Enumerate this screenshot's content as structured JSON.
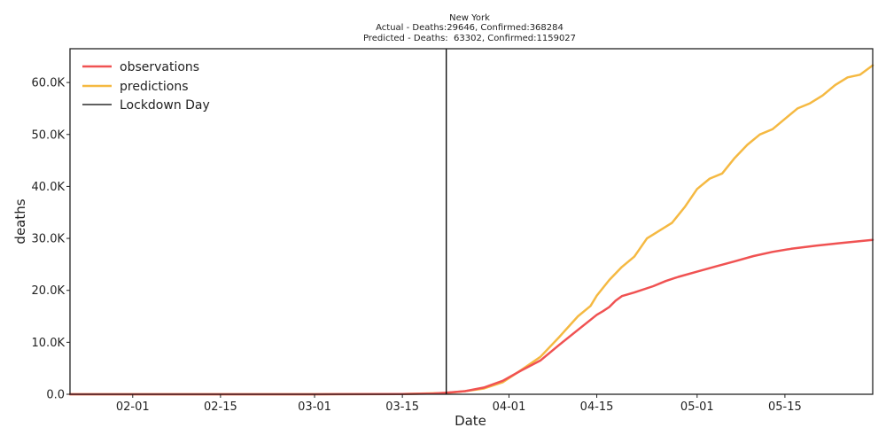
{
  "chart_data": {
    "type": "line",
    "title": "New York",
    "subtitle_lines": [
      "Actual - Deaths:29646, Confirmed:368284",
      "Predicted - Deaths:  63302, Confirmed:1159027"
    ],
    "xlabel": "Date",
    "ylabel": "deaths",
    "x_ticks": [
      "02-01",
      "02-15",
      "03-01",
      "03-15",
      "04-01",
      "04-15",
      "05-01",
      "05-15"
    ],
    "x_tick_dates": [
      "2020-02-01",
      "2020-02-15",
      "2020-03-01",
      "2020-03-15",
      "2020-04-01",
      "2020-04-15",
      "2020-05-01",
      "2020-05-15"
    ],
    "xlim": [
      "2020-01-22",
      "2020-05-29"
    ],
    "y_ticks": [
      {
        "value": 0,
        "label": "0.0"
      },
      {
        "value": 10000,
        "label": "10.0K"
      },
      {
        "value": 20000,
        "label": "20.0K"
      },
      {
        "value": 30000,
        "label": "30.0K"
      },
      {
        "value": 40000,
        "label": "40.0K"
      },
      {
        "value": 50000,
        "label": "50.0K"
      },
      {
        "value": 60000,
        "label": "60.0K"
      }
    ],
    "ylim": [
      0,
      66500
    ],
    "grid": false,
    "legend_position": "top-left",
    "legend": [
      {
        "label": "observations",
        "color": "#f05252",
        "style": "line"
      },
      {
        "label": "predictions",
        "color": "#f5b942",
        "style": "line"
      },
      {
        "label": "Lockdown Day",
        "color": "#000000",
        "style": "line"
      }
    ],
    "lockdown_date": "2020-03-22",
    "series": [
      {
        "name": "observations",
        "color": "#f05252",
        "x": [
          "2020-01-22",
          "2020-03-01",
          "2020-03-15",
          "2020-03-20",
          "2020-03-22",
          "2020-03-25",
          "2020-03-28",
          "2020-03-31",
          "2020-04-03",
          "2020-04-06",
          "2020-04-09",
          "2020-04-12",
          "2020-04-15",
          "2020-04-16",
          "2020-04-17",
          "2020-04-18",
          "2020-04-19",
          "2020-04-21",
          "2020-04-24",
          "2020-04-26",
          "2020-04-28",
          "2020-05-01",
          "2020-05-04",
          "2020-05-07",
          "2020-05-10",
          "2020-05-13",
          "2020-05-16",
          "2020-05-20",
          "2020-05-24",
          "2020-05-29"
        ],
        "values": [
          0,
          0,
          50,
          150,
          300,
          600,
          1300,
          2600,
          4600,
          6500,
          9500,
          12400,
          15300,
          16000,
          16800,
          18000,
          18900,
          19600,
          20800,
          21800,
          22600,
          23600,
          24600,
          25600,
          26600,
          27400,
          28000,
          28600,
          29100,
          29700
        ]
      },
      {
        "name": "predictions",
        "color": "#f5b942",
        "x": [
          "2020-01-22",
          "2020-03-01",
          "2020-03-15",
          "2020-03-22",
          "2020-03-25",
          "2020-03-28",
          "2020-03-31",
          "2020-04-03",
          "2020-04-06",
          "2020-04-09",
          "2020-04-12",
          "2020-04-14",
          "2020-04-15",
          "2020-04-17",
          "2020-04-19",
          "2020-04-21",
          "2020-04-23",
          "2020-04-25",
          "2020-04-27",
          "2020-04-29",
          "2020-05-01",
          "2020-05-03",
          "2020-05-05",
          "2020-05-07",
          "2020-05-09",
          "2020-05-11",
          "2020-05-13",
          "2020-05-15",
          "2020-05-17",
          "2020-05-19",
          "2020-05-21",
          "2020-05-23",
          "2020-05-25",
          "2020-05-27",
          "2020-05-29"
        ],
        "values": [
          0,
          0,
          50,
          250,
          600,
          1100,
          2300,
          4700,
          7200,
          11000,
          15000,
          17000,
          19000,
          22000,
          24500,
          26500,
          30000,
          31500,
          33000,
          36000,
          39500,
          41500,
          42500,
          45500,
          48000,
          50000,
          51000,
          53000,
          55000,
          56000,
          57500,
          59500,
          61000,
          61500,
          63300
        ]
      }
    ]
  }
}
